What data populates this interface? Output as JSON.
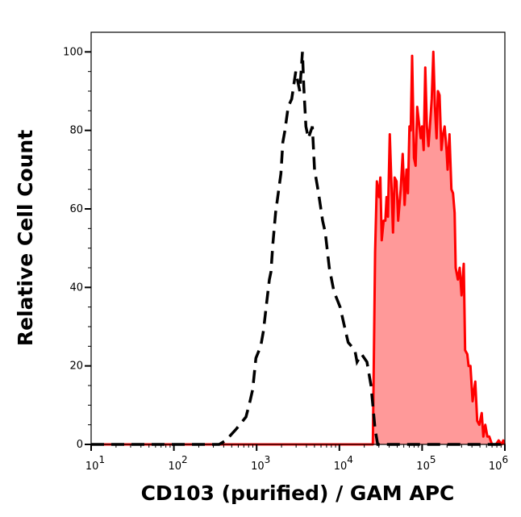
{
  "chart_data": {
    "type": "area",
    "title": "",
    "xlabel": "CD103 (purified) / GAM APC",
    "ylabel": "Relative Cell Count",
    "xscale": "log",
    "xlim": [
      10,
      1000000
    ],
    "ylim": [
      0,
      105
    ],
    "grid": false,
    "legend": "none",
    "y_ticks": [
      0,
      20,
      40,
      60,
      80,
      100
    ],
    "x_ticks": [
      {
        "value": 10,
        "base": "10",
        "exp": "1"
      },
      {
        "value": 100,
        "base": "10",
        "exp": "2"
      },
      {
        "value": 1000,
        "base": "10",
        "exp": "3"
      },
      {
        "value": 10000,
        "base": "10",
        "exp": "4"
      },
      {
        "value": 100000,
        "base": "10",
        "exp": "5"
      },
      {
        "value": 1000000,
        "base": "10",
        "exp": "6"
      }
    ],
    "series": [
      {
        "style": "dashed-line",
        "color": "#000000",
        "x": [
          10,
          352,
          425,
          572,
          743,
          832,
          896,
          980,
          1121,
          1210,
          1303,
          1425,
          1490,
          1570,
          1694,
          1965,
          2073,
          2198,
          2404,
          2654,
          2970,
          3322,
          3577,
          3717,
          3942,
          4217,
          4716,
          5010,
          5606,
          6274,
          6754,
          7556,
          8586,
          10200,
          11840,
          12770,
          15380,
          16330,
          18530,
          21530,
          24090,
          26980,
          29050,
          1000000
        ],
        "y": [
          0,
          0,
          1,
          4,
          7,
          11,
          14,
          22,
          25,
          29,
          35,
          42,
          44,
          51,
          59,
          69,
          77,
          80,
          86,
          88,
          95,
          90,
          100,
          91,
          81,
          78,
          81,
          70,
          64,
          57,
          54,
          45,
          39,
          35,
          29,
          26,
          24,
          21,
          23,
          21,
          15,
          4,
          0,
          0
        ]
      },
      {
        "style": "filled-area",
        "color": "#ff0000",
        "fill": "#ff9999",
        "x": [
          10,
          25400,
          27000,
          28400,
          30200,
          31300,
          32500,
          34300,
          35900,
          37200,
          38600,
          40700,
          44500,
          46500,
          49100,
          51400,
          55000,
          58200,
          61400,
          64700,
          67300,
          70300,
          72900,
          75700,
          79800,
          83400,
          87300,
          92700,
          96200,
          99800,
          104300,
          109100,
          114100,
          119300,
          125900,
          130500,
          136500,
          142800,
          149300,
          155200,
          162400,
          171000,
          178800,
          187000,
          197300,
          203200,
          213900,
          225700,
          236000,
          247000,
          254300,
          270200,
          284500,
          299700,
          318500,
          330900,
          351100,
          364300,
          383600,
          407500,
          438600,
          463000,
          491000,
          525000,
          549000,
          580000,
          615000,
          649000,
          699000,
          782000,
          841000,
          908000,
          957000,
          993000
        ],
        "y": [
          0,
          0,
          49,
          67,
          63,
          68,
          52,
          57,
          57,
          63,
          58,
          79,
          54,
          68,
          67,
          57,
          65,
          74,
          61,
          70,
          64,
          81,
          80,
          99,
          73,
          71,
          86,
          81,
          78,
          81,
          75,
          96,
          81,
          76,
          83,
          88,
          100,
          86,
          78,
          90,
          89,
          75,
          79,
          81,
          75,
          70,
          79,
          65,
          64,
          59,
          45,
          42,
          45,
          38,
          46,
          24,
          23,
          20,
          20,
          11,
          16,
          6,
          5,
          8,
          2,
          5,
          2,
          2,
          0,
          0,
          1,
          0,
          1,
          0
        ]
      }
    ]
  }
}
